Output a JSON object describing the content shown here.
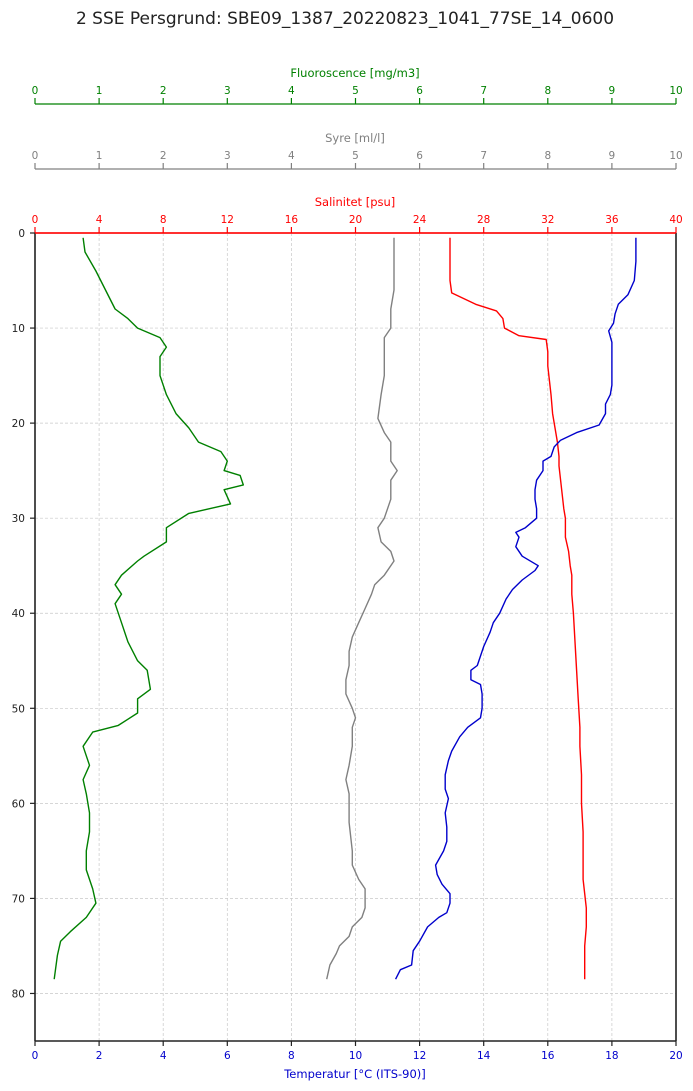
{
  "chart_data": {
    "type": "line",
    "title": "2 SSE Persgrund: SBE09_1387_20220823_1041_77SE_14_0600",
    "ylim": [
      85,
      0
    ],
    "yticks": [
      0,
      10,
      20,
      30,
      40,
      50,
      60,
      70,
      80
    ],
    "grid": true,
    "axes": {
      "fluorescence": {
        "label": "Fluoroscence [mg/m3]",
        "color": "#008000",
        "range": [
          0,
          10
        ],
        "ticks": [
          0,
          1,
          2,
          3,
          4,
          5,
          6,
          7,
          8,
          9,
          10
        ]
      },
      "oxygen": {
        "label": "Syre [ml/l]",
        "color": "#808080",
        "range": [
          0,
          10
        ],
        "ticks": [
          0,
          1,
          2,
          3,
          4,
          5,
          6,
          7,
          8,
          9,
          10
        ]
      },
      "salinity": {
        "label": "Salinitet [psu]",
        "color": "#ff0000",
        "range": [
          0,
          40
        ],
        "ticks": [
          0,
          4,
          8,
          12,
          16,
          20,
          24,
          28,
          32,
          36,
          40
        ]
      },
      "temperature": {
        "label": "Temperatur [°C (ITS-90)]",
        "color": "#0000cc",
        "range": [
          0,
          20
        ],
        "ticks": [
          0,
          2,
          4,
          6,
          8,
          10,
          12,
          14,
          16,
          18,
          20
        ]
      }
    },
    "series": [
      {
        "axis": "fluorescence",
        "points": [
          [
            0.75,
            0.5
          ],
          [
            0.78,
            2
          ],
          [
            0.95,
            4
          ],
          [
            1.1,
            6
          ],
          [
            1.25,
            8
          ],
          [
            1.45,
            9
          ],
          [
            1.6,
            10
          ],
          [
            1.95,
            11
          ],
          [
            2.05,
            12
          ],
          [
            1.95,
            13
          ],
          [
            1.95,
            15
          ],
          [
            2.05,
            17
          ],
          [
            2.2,
            19
          ],
          [
            2.4,
            20.5
          ],
          [
            2.55,
            22
          ],
          [
            2.9,
            23
          ],
          [
            3.0,
            24
          ],
          [
            2.95,
            25
          ],
          [
            3.2,
            25.5
          ],
          [
            3.25,
            26.5
          ],
          [
            2.95,
            27
          ],
          [
            3.05,
            28.5
          ],
          [
            2.4,
            29.5
          ],
          [
            2.05,
            31
          ],
          [
            2.05,
            32.5
          ],
          [
            1.7,
            34
          ],
          [
            1.6,
            34.5
          ],
          [
            1.35,
            36
          ],
          [
            1.25,
            37
          ],
          [
            1.35,
            38
          ],
          [
            1.25,
            39
          ],
          [
            1.35,
            41
          ],
          [
            1.45,
            43
          ],
          [
            1.6,
            45
          ],
          [
            1.75,
            46
          ],
          [
            1.8,
            48
          ],
          [
            1.6,
            49
          ],
          [
            1.6,
            50.5
          ],
          [
            1.3,
            51.8
          ],
          [
            0.9,
            52.5
          ],
          [
            0.75,
            54
          ],
          [
            0.85,
            56
          ],
          [
            0.75,
            57.5
          ],
          [
            0.8,
            59
          ],
          [
            0.85,
            61
          ],
          [
            0.85,
            63
          ],
          [
            0.8,
            65
          ],
          [
            0.8,
            67
          ],
          [
            0.9,
            69
          ],
          [
            0.95,
            70.5
          ],
          [
            0.8,
            72
          ],
          [
            0.55,
            73.5
          ],
          [
            0.4,
            74.5
          ],
          [
            0.35,
            76
          ],
          [
            0.3,
            78.5
          ]
        ]
      },
      {
        "axis": "oxygen",
        "points": [
          [
            5.6,
            0.5
          ],
          [
            5.6,
            3
          ],
          [
            5.6,
            6
          ],
          [
            5.55,
            8
          ],
          [
            5.55,
            10
          ],
          [
            5.45,
            11
          ],
          [
            5.45,
            13
          ],
          [
            5.45,
            15
          ],
          [
            5.4,
            17
          ],
          [
            5.35,
            19.5
          ],
          [
            5.45,
            21
          ],
          [
            5.55,
            22
          ],
          [
            5.55,
            24
          ],
          [
            5.65,
            25
          ],
          [
            5.55,
            26
          ],
          [
            5.55,
            28
          ],
          [
            5.45,
            30
          ],
          [
            5.35,
            31
          ],
          [
            5.4,
            32.5
          ],
          [
            5.55,
            33.5
          ],
          [
            5.6,
            34.5
          ],
          [
            5.45,
            36
          ],
          [
            5.3,
            37
          ],
          [
            5.25,
            38
          ],
          [
            5.15,
            39.5
          ],
          [
            5.05,
            41
          ],
          [
            4.95,
            42.5
          ],
          [
            4.9,
            44
          ],
          [
            4.9,
            45.5
          ],
          [
            4.85,
            47
          ],
          [
            4.85,
            48.5
          ],
          [
            4.95,
            50
          ],
          [
            5.0,
            51
          ],
          [
            4.95,
            52
          ],
          [
            4.95,
            54
          ],
          [
            4.9,
            56
          ],
          [
            4.85,
            57.5
          ],
          [
            4.9,
            59
          ],
          [
            4.9,
            62
          ],
          [
            4.95,
            65
          ],
          [
            4.95,
            66.5
          ],
          [
            5.05,
            68
          ],
          [
            5.15,
            69
          ],
          [
            5.15,
            71
          ],
          [
            5.1,
            72
          ],
          [
            4.95,
            73
          ],
          [
            4.9,
            74
          ],
          [
            4.75,
            75
          ],
          [
            4.7,
            75.8
          ],
          [
            4.6,
            77
          ],
          [
            4.55,
            78.5
          ]
        ]
      },
      {
        "axis": "salinity",
        "points": [
          [
            25.9,
            0.5
          ],
          [
            25.9,
            3
          ],
          [
            25.9,
            5
          ],
          [
            26.0,
            6.3
          ],
          [
            27.5,
            7.5
          ],
          [
            28.8,
            8.2
          ],
          [
            29.2,
            9
          ],
          [
            29.3,
            10
          ],
          [
            30.2,
            10.8
          ],
          [
            31.9,
            11.2
          ],
          [
            32.0,
            12.5
          ],
          [
            32.0,
            14
          ],
          [
            32.1,
            15.5
          ],
          [
            32.2,
            17
          ],
          [
            32.3,
            19
          ],
          [
            32.4,
            20
          ],
          [
            32.5,
            21
          ],
          [
            32.6,
            22
          ],
          [
            32.7,
            23.5
          ],
          [
            32.7,
            24.5
          ],
          [
            32.8,
            26
          ],
          [
            32.9,
            27.5
          ],
          [
            33.0,
            29
          ],
          [
            33.1,
            30
          ],
          [
            33.1,
            32
          ],
          [
            33.3,
            33.5
          ],
          [
            33.4,
            35
          ],
          [
            33.5,
            36
          ],
          [
            33.5,
            38
          ],
          [
            33.6,
            40
          ],
          [
            33.7,
            43
          ],
          [
            33.8,
            46
          ],
          [
            33.9,
            49
          ],
          [
            34.0,
            52
          ],
          [
            34.0,
            54
          ],
          [
            34.1,
            57
          ],
          [
            34.1,
            60
          ],
          [
            34.2,
            63
          ],
          [
            34.2,
            66
          ],
          [
            34.2,
            68
          ],
          [
            34.4,
            71
          ],
          [
            34.4,
            73
          ],
          [
            34.3,
            75
          ],
          [
            34.3,
            77
          ],
          [
            34.3,
            78.5
          ]
        ]
      },
      {
        "axis": "temperature",
        "points": [
          [
            18.75,
            0.5
          ],
          [
            18.75,
            3
          ],
          [
            18.7,
            5
          ],
          [
            18.5,
            6.5
          ],
          [
            18.2,
            7.5
          ],
          [
            18.1,
            8.5
          ],
          [
            18.05,
            9.5
          ],
          [
            17.9,
            10.3
          ],
          [
            18.0,
            11.5
          ],
          [
            18.0,
            13
          ],
          [
            18.0,
            14.5
          ],
          [
            18.0,
            16
          ],
          [
            17.95,
            17
          ],
          [
            17.8,
            18
          ],
          [
            17.8,
            19
          ],
          [
            17.6,
            20.2
          ],
          [
            16.9,
            21
          ],
          [
            16.4,
            21.8
          ],
          [
            16.2,
            22.5
          ],
          [
            16.1,
            23.5
          ],
          [
            15.85,
            24
          ],
          [
            15.85,
            25
          ],
          [
            15.65,
            26
          ],
          [
            15.6,
            27
          ],
          [
            15.6,
            28
          ],
          [
            15.65,
            29
          ],
          [
            15.65,
            30
          ],
          [
            15.3,
            31
          ],
          [
            15.0,
            31.5
          ],
          [
            15.1,
            32
          ],
          [
            15.0,
            33
          ],
          [
            15.2,
            34
          ],
          [
            15.7,
            35
          ],
          [
            15.6,
            35.5
          ],
          [
            15.2,
            36.5
          ],
          [
            14.9,
            37.5
          ],
          [
            14.7,
            38.5
          ],
          [
            14.5,
            40
          ],
          [
            14.3,
            41
          ],
          [
            14.2,
            42
          ],
          [
            14.0,
            43.5
          ],
          [
            13.9,
            44.5
          ],
          [
            13.8,
            45.5
          ],
          [
            13.6,
            46
          ],
          [
            13.6,
            47
          ],
          [
            13.9,
            47.5
          ],
          [
            13.95,
            48.5
          ],
          [
            13.95,
            50
          ],
          [
            13.9,
            51
          ],
          [
            13.5,
            52
          ],
          [
            13.25,
            53
          ],
          [
            13.0,
            54.5
          ],
          [
            12.9,
            55.5
          ],
          [
            12.8,
            57
          ],
          [
            12.8,
            58.5
          ],
          [
            12.9,
            59.5
          ],
          [
            12.8,
            61
          ],
          [
            12.85,
            62.5
          ],
          [
            12.85,
            64
          ],
          [
            12.75,
            65
          ],
          [
            12.5,
            66.5
          ],
          [
            12.55,
            67.5
          ],
          [
            12.7,
            68.5
          ],
          [
            12.95,
            69.5
          ],
          [
            12.95,
            70.5
          ],
          [
            12.85,
            71.5
          ],
          [
            12.6,
            72
          ],
          [
            12.25,
            73
          ],
          [
            12.0,
            74.5
          ],
          [
            11.8,
            75.5
          ],
          [
            11.75,
            77
          ],
          [
            11.4,
            77.5
          ],
          [
            11.25,
            78.5
          ]
        ]
      }
    ]
  }
}
